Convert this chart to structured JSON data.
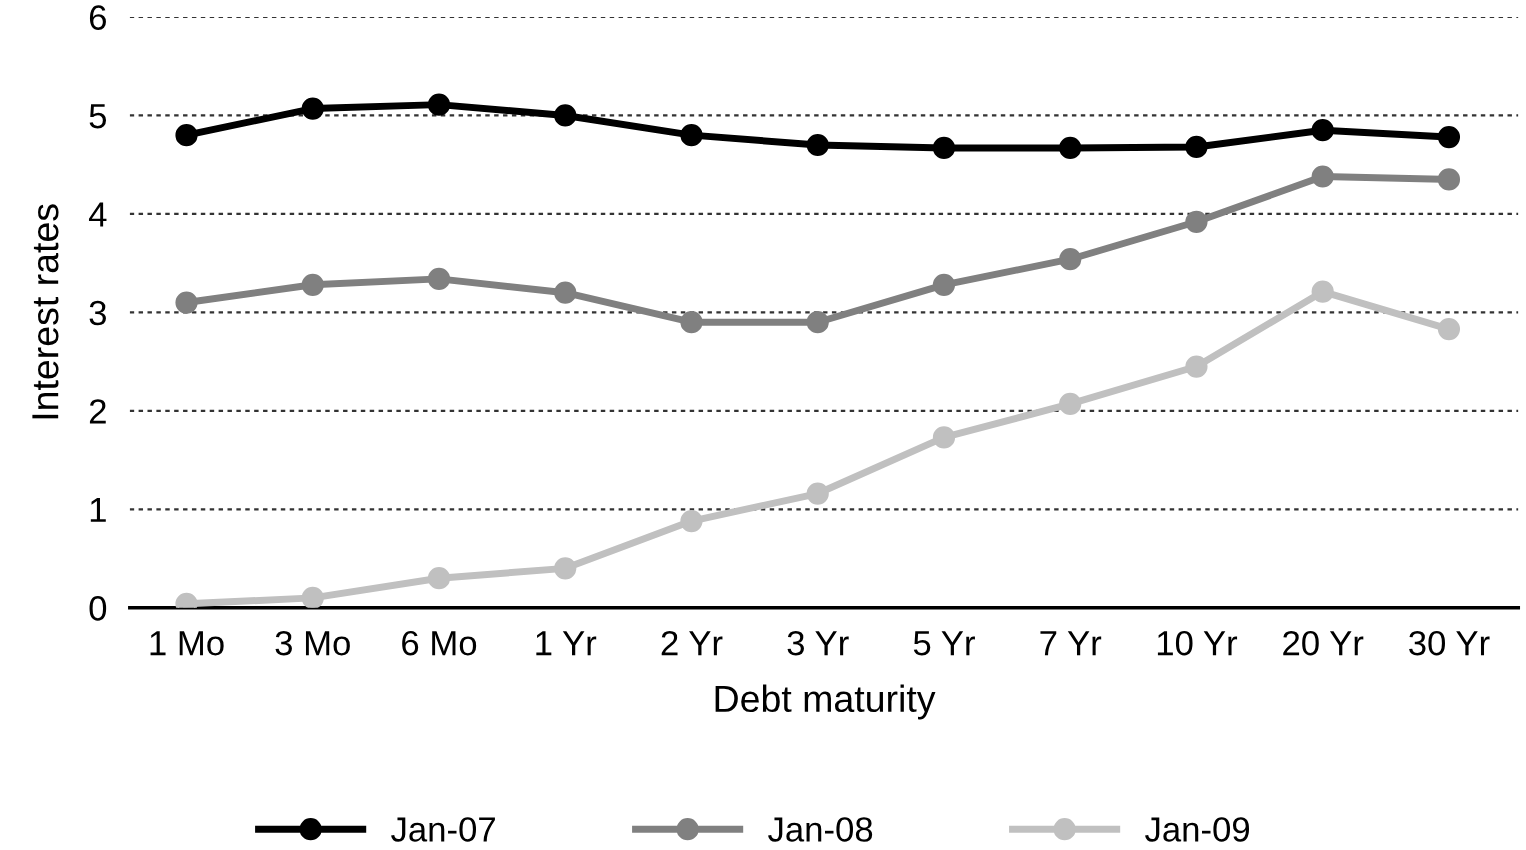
{
  "chart_data": {
    "type": "line",
    "xlabel": "Debt maturity",
    "ylabel": "Interest rates",
    "categories": [
      "1 Mo",
      "3 Mo",
      "6 Mo",
      "1 Yr",
      "2 Yr",
      "3 Yr",
      "5 Yr",
      "7 Yr",
      "10 Yr",
      "20 Yr",
      "30 Yr"
    ],
    "series": [
      {
        "name": "Jan-07",
        "color": "#000000",
        "values": [
          4.8,
          5.07,
          5.11,
          5.0,
          4.8,
          4.7,
          4.67,
          4.67,
          4.68,
          4.85,
          4.78
        ]
      },
      {
        "name": "Jan-08",
        "color": "#808080",
        "values": [
          3.1,
          3.28,
          3.34,
          3.2,
          2.9,
          2.9,
          3.28,
          3.54,
          3.92,
          4.38,
          4.35
        ]
      },
      {
        "name": "Jan-09",
        "color": "#c0c0c0",
        "values": [
          0.04,
          0.1,
          0.3,
          0.4,
          0.88,
          1.16,
          1.73,
          2.07,
          2.45,
          3.21,
          2.83
        ]
      }
    ],
    "ylim": [
      0,
      6
    ],
    "yticks": [
      0,
      1,
      2,
      3,
      4,
      5,
      6
    ],
    "grid": "y",
    "legend": "bottom",
    "marker": "circle",
    "line_style": "solid"
  }
}
